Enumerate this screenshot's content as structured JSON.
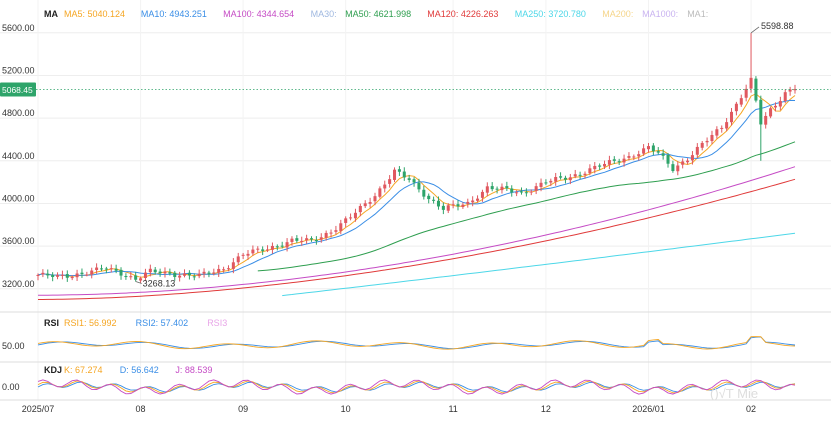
{
  "chart_data": {
    "type": "candlestick",
    "ylim": [
      3020,
      5720
    ],
    "y_ticks": [
      {
        "value": 5600,
        "label": "5600.00"
      },
      {
        "value": 5200,
        "label": "5200.00"
      },
      {
        "value": 4800,
        "label": "4800.00"
      },
      {
        "value": 4400,
        "label": "4400.00"
      },
      {
        "value": 4000,
        "label": "4000.00"
      },
      {
        "value": 3600,
        "label": "3600.00"
      },
      {
        "value": 3200,
        "label": "3200.00"
      }
    ],
    "x_labels": [
      {
        "index": 0,
        "label": "2025/07"
      },
      {
        "index": 21,
        "label": "08"
      },
      {
        "index": 42,
        "label": "09"
      },
      {
        "index": 63,
        "label": "10"
      },
      {
        "index": 85,
        "label": "11"
      },
      {
        "index": 104,
        "label": "12"
      },
      {
        "index": 125,
        "label": "2026/01"
      },
      {
        "index": 146,
        "label": "02"
      }
    ],
    "current_price": {
      "value": 5068.45,
      "label": "5068.45"
    },
    "annotations": {
      "high": {
        "index": 146,
        "value": 5598.88,
        "label": "5598.88"
      },
      "low": {
        "index": 20,
        "value": 3268.13,
        "label": "3268.13"
      }
    },
    "price_anchors": [
      [
        0,
        3330
      ],
      [
        4,
        3310
      ],
      [
        9,
        3345
      ],
      [
        14,
        3390
      ],
      [
        17,
        3350
      ],
      [
        20,
        3290
      ],
      [
        23,
        3360
      ],
      [
        28,
        3340
      ],
      [
        33,
        3320
      ],
      [
        38,
        3390
      ],
      [
        42,
        3520
      ],
      [
        47,
        3580
      ],
      [
        52,
        3650
      ],
      [
        56,
        3650
      ],
      [
        60,
        3740
      ],
      [
        64,
        3870
      ],
      [
        69,
        4080
      ],
      [
        73,
        4300
      ],
      [
        76,
        4220
      ],
      [
        80,
        4050
      ],
      [
        83,
        3950
      ],
      [
        88,
        4000
      ],
      [
        92,
        4150
      ],
      [
        95,
        4130
      ],
      [
        99,
        4100
      ],
      [
        104,
        4200
      ],
      [
        109,
        4250
      ],
      [
        113,
        4320
      ],
      [
        117,
        4380
      ],
      [
        121,
        4440
      ],
      [
        125,
        4520
      ],
      [
        127,
        4470
      ],
      [
        130,
        4330
      ],
      [
        133,
        4420
      ],
      [
        136,
        4550
      ],
      [
        140,
        4720
      ],
      [
        143,
        4930
      ],
      [
        146,
        5150
      ],
      [
        148,
        4750
      ],
      [
        150,
        4880
      ],
      [
        153,
        5040
      ],
      [
        155,
        5085
      ]
    ],
    "ma_legend": [
      {
        "label": "MA",
        "color": "#222222"
      },
      {
        "label": "MA5: 5040.124",
        "color": "#f5a623"
      },
      {
        "label": "MA10: 4943.251",
        "color": "#3a8ee6"
      },
      {
        "label": "MA100: 4344.654",
        "color": "#c54bc5"
      },
      {
        "label": "MA30:",
        "color": "#9fb8e0"
      },
      {
        "label": "MA50: 4621.998",
        "color": "#2e9e4f"
      },
      {
        "label": "MA120: 4226.263",
        "color": "#e03a3a"
      },
      {
        "label": "MA250: 3720.780",
        "color": "#4dd7e8"
      },
      {
        "label": "MA200:",
        "color": "#f5d58a"
      },
      {
        "label": "MA1000:",
        "color": "#c9b3f0"
      },
      {
        "label": "MA1:",
        "color": "#bbbbbb"
      }
    ],
    "ma_series": [
      {
        "period": 5,
        "color": "#f5a623"
      },
      {
        "period": 10,
        "color": "#3a8ee6"
      },
      {
        "period": 50,
        "color": "#2e9e4f"
      },
      {
        "period": 100,
        "color": "#c54bc5",
        "note": "long"
      },
      {
        "period": 120,
        "color": "#e03a3a",
        "note": "long"
      },
      {
        "period": 250,
        "color": "#4dd7e8",
        "note": "long"
      }
    ],
    "rsi": {
      "legend": [
        {
          "label": "RSI",
          "color": "#222222"
        },
        {
          "label": "RSI1: 56.992",
          "color": "#f5a623"
        },
        {
          "label": "RSI2: 57.402",
          "color": "#3a8ee6"
        },
        {
          "label": "RSI3",
          "color": "#e8a6e8"
        }
      ],
      "tick": {
        "value": 50,
        "label": "50.00"
      },
      "ylim": [
        20,
        80
      ]
    },
    "kdj": {
      "legend": [
        {
          "label": "KDJ",
          "color": "#222222"
        },
        {
          "label": "K: 67.274",
          "color": "#f5a623"
        },
        {
          "label": "D: 56.642",
          "color": "#3a8ee6"
        },
        {
          "label": "J: 88.539",
          "color": "#c54bc5"
        }
      ],
      "tick": {
        "value": 0,
        "label": "0.00"
      },
      "ylim": [
        -1.6,
        1.6
      ]
    },
    "colors": {
      "up": "#e0585f",
      "down": "#2ea46a",
      "grid": "#eeeeee",
      "price_line": "#2ea46a"
    }
  }
}
